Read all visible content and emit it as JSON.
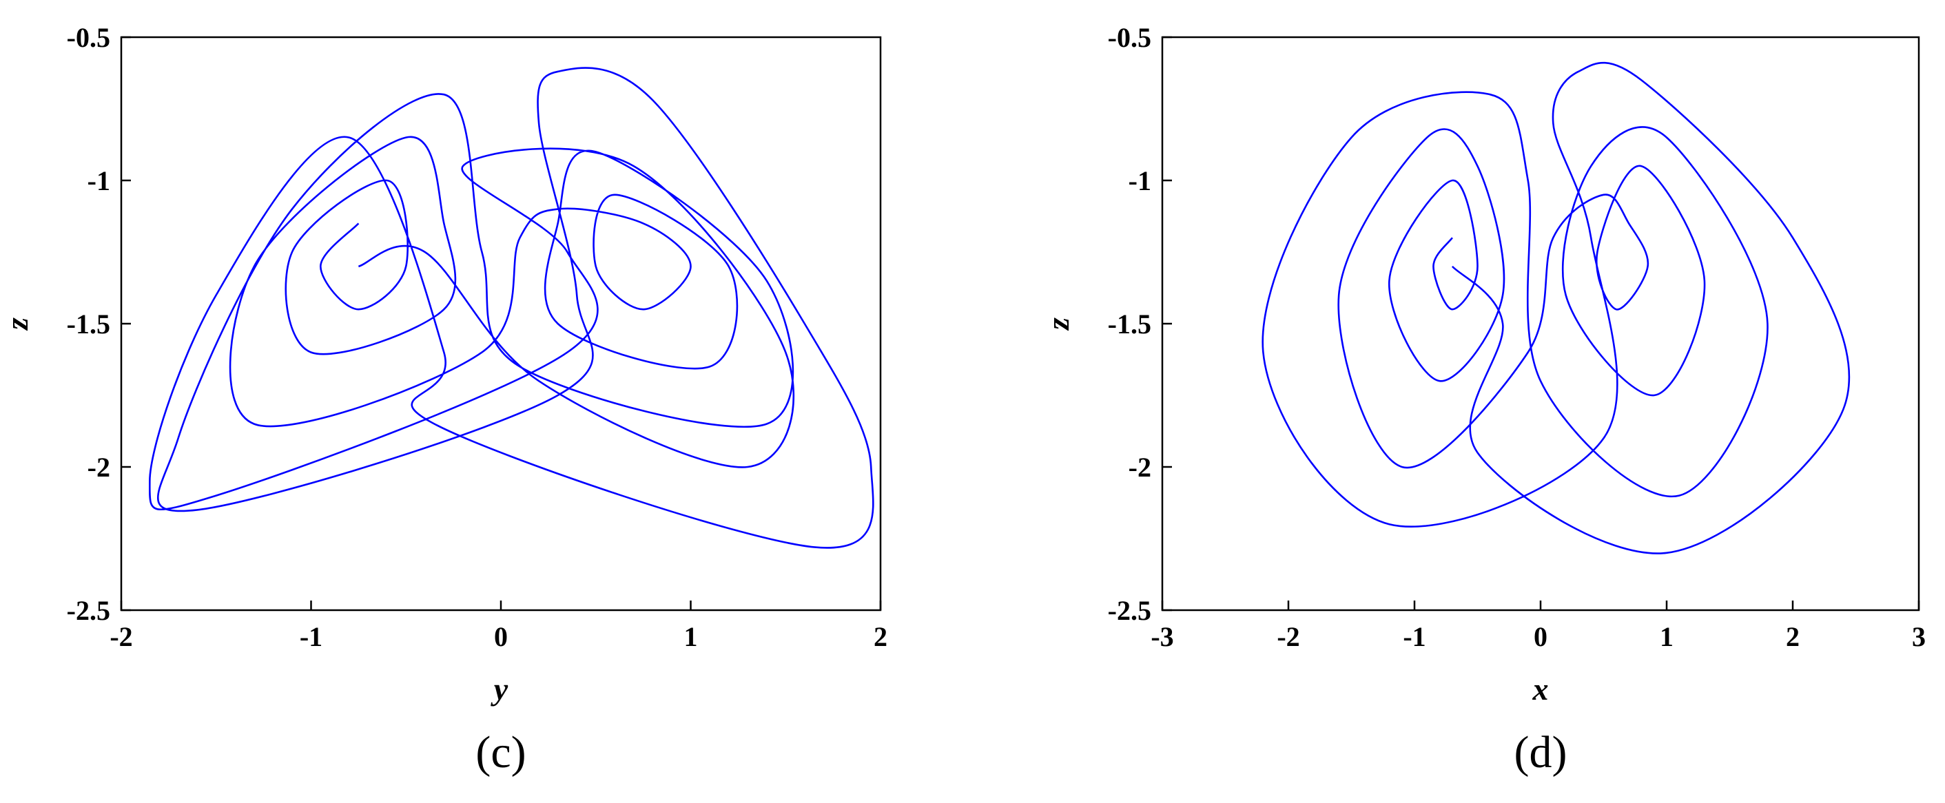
{
  "chart_data": [
    {
      "type": "line",
      "caption": "(c)",
      "x_label": "y",
      "y_label": "z",
      "color": "#0000ff",
      "xlim": [
        -2,
        2
      ],
      "xticks": [
        -2,
        -1,
        0,
        1,
        2
      ],
      "ylim": [
        -2.5,
        -0.5
      ],
      "yticks": [
        -2.5,
        -2,
        -1.5,
        -1,
        -0.5
      ],
      "x": [
        -0.75,
        -0.95,
        -0.75,
        -0.5,
        -0.6,
        -1.1,
        -1.0,
        -0.3,
        -0.3,
        -0.5,
        -1.3,
        -1.3,
        -0.1,
        0.1,
        0.3,
        0.75,
        1.0,
        0.75,
        0.5,
        0.6,
        1.2,
        1.1,
        0.3,
        0.3,
        0.5,
        1.4,
        1.4,
        0.1,
        -0.1,
        -0.3,
        -1.1,
        -1.7,
        -1.6,
        0.3,
        0.4,
        0.2,
        0.3,
        0.8,
        1.6,
        1.95,
        1.65,
        -0.35,
        -0.3,
        -0.8,
        -1.5,
        -1.85,
        -1.5,
        0.35,
        0.35,
        -0.2,
        0.7,
        1.5,
        1.3,
        0.2,
        -0.4,
        -0.75
      ],
      "values": [
        -1.15,
        -1.3,
        -1.45,
        -1.3,
        -1.0,
        -1.25,
        -1.6,
        -1.45,
        -1.15,
        -0.85,
        -1.3,
        -1.85,
        -1.6,
        -1.2,
        -1.1,
        -1.15,
        -1.3,
        -1.45,
        -1.3,
        -1.05,
        -1.3,
        -1.65,
        -1.5,
        -1.15,
        -0.9,
        -1.35,
        -1.85,
        -1.65,
        -1.25,
        -0.7,
        -1.1,
        -1.9,
        -2.15,
        -1.75,
        -1.4,
        -0.8,
        -0.62,
        -0.72,
        -1.5,
        -2.0,
        -2.28,
        -1.85,
        -1.6,
        -0.85,
        -1.4,
        -2.05,
        -2.1,
        -1.6,
        -1.25,
        -0.95,
        -0.95,
        -1.6,
        -2.0,
        -1.7,
        -1.25,
        -1.3
      ]
    },
    {
      "type": "line",
      "caption": "(d)",
      "x_label": "x",
      "y_label": "z",
      "color": "#0000ff",
      "xlim": [
        -3,
        3
      ],
      "xticks": [
        -3,
        -2,
        -1,
        0,
        1,
        2,
        3
      ],
      "ylim": [
        -2.5,
        -0.5
      ],
      "yticks": [
        -2.5,
        -2,
        -1.5,
        -1,
        -0.5
      ],
      "x": [
        -0.7,
        -0.85,
        -0.7,
        -0.5,
        -0.7,
        -1.2,
        -0.8,
        -0.3,
        -0.5,
        -0.9,
        -1.6,
        -1.1,
        -0.1,
        0.1,
        0.5,
        0.7,
        0.85,
        0.6,
        0.45,
        0.8,
        1.3,
        0.9,
        0.2,
        0.4,
        1.0,
        1.8,
        1.1,
        0.0,
        -0.1,
        -0.4,
        -1.5,
        -2.2,
        -1.2,
        0.5,
        0.4,
        0.1,
        0.3,
        0.8,
        2.0,
        2.4,
        1.0,
        -0.5,
        -0.3,
        -0.7
      ],
      "values": [
        -1.2,
        -1.3,
        -1.45,
        -1.3,
        -1.0,
        -1.35,
        -1.7,
        -1.4,
        -0.95,
        -0.85,
        -1.4,
        -2.0,
        -1.6,
        -1.2,
        -1.05,
        -1.15,
        -1.3,
        -1.45,
        -1.25,
        -0.95,
        -1.35,
        -1.75,
        -1.4,
        -0.95,
        -0.85,
        -1.5,
        -2.1,
        -1.7,
        -1.0,
        -0.7,
        -0.85,
        -1.6,
        -2.2,
        -1.9,
        -1.2,
        -0.8,
        -0.62,
        -0.65,
        -1.2,
        -1.8,
        -2.3,
        -1.95,
        -1.5,
        -1.3
      ]
    }
  ]
}
